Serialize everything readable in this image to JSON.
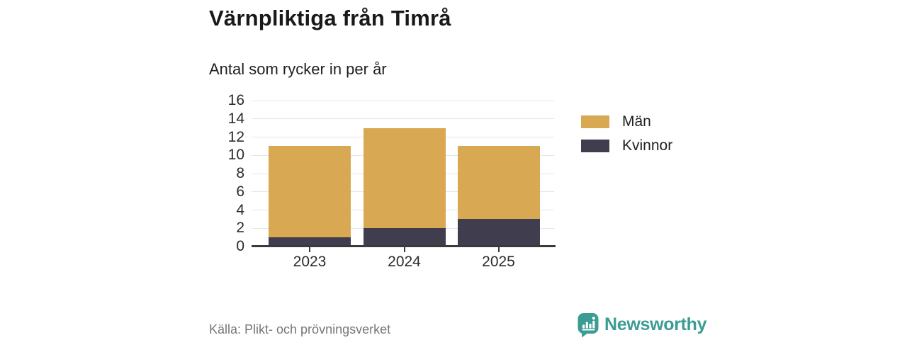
{
  "header": {
    "title": "Värnpliktiga från Timrå",
    "subtitle": "Antal som rycker in per år"
  },
  "chart_data": {
    "type": "bar",
    "stacked": true,
    "title": "Värnpliktiga från Timrå",
    "subtitle": "Antal som rycker in per år",
    "categories": [
      "2023",
      "2024",
      "2025"
    ],
    "series": [
      {
        "name": "Kvinnor",
        "color": "#403d4e",
        "values": [
          1,
          2,
          3
        ]
      },
      {
        "name": "Män",
        "color": "#d9a853",
        "values": [
          10,
          11,
          8
        ]
      }
    ],
    "stack_order_bottom_to_top": [
      "Kvinnor",
      "Män"
    ],
    "totals": [
      11,
      13,
      11
    ],
    "xlabel": "",
    "ylabel": "",
    "ylim": [
      0,
      16
    ],
    "yticks": [
      0,
      2,
      4,
      6,
      8,
      10,
      12,
      14,
      16
    ],
    "grid": true,
    "legend_position": "right"
  },
  "legend": {
    "items": [
      {
        "label": "Män",
        "color": "#d9a853"
      },
      {
        "label": "Kvinnor",
        "color": "#403d4e"
      }
    ]
  },
  "footer": {
    "source": "Källa: Plikt- och prövningsverket",
    "brand": "Newsworthy"
  },
  "colors": {
    "men_gold": "#d9a853",
    "women_dark": "#403d4e",
    "brand_teal": "#3b9c94",
    "gridline": "#e5e5e5",
    "axis_line": "#3a3a3c"
  }
}
